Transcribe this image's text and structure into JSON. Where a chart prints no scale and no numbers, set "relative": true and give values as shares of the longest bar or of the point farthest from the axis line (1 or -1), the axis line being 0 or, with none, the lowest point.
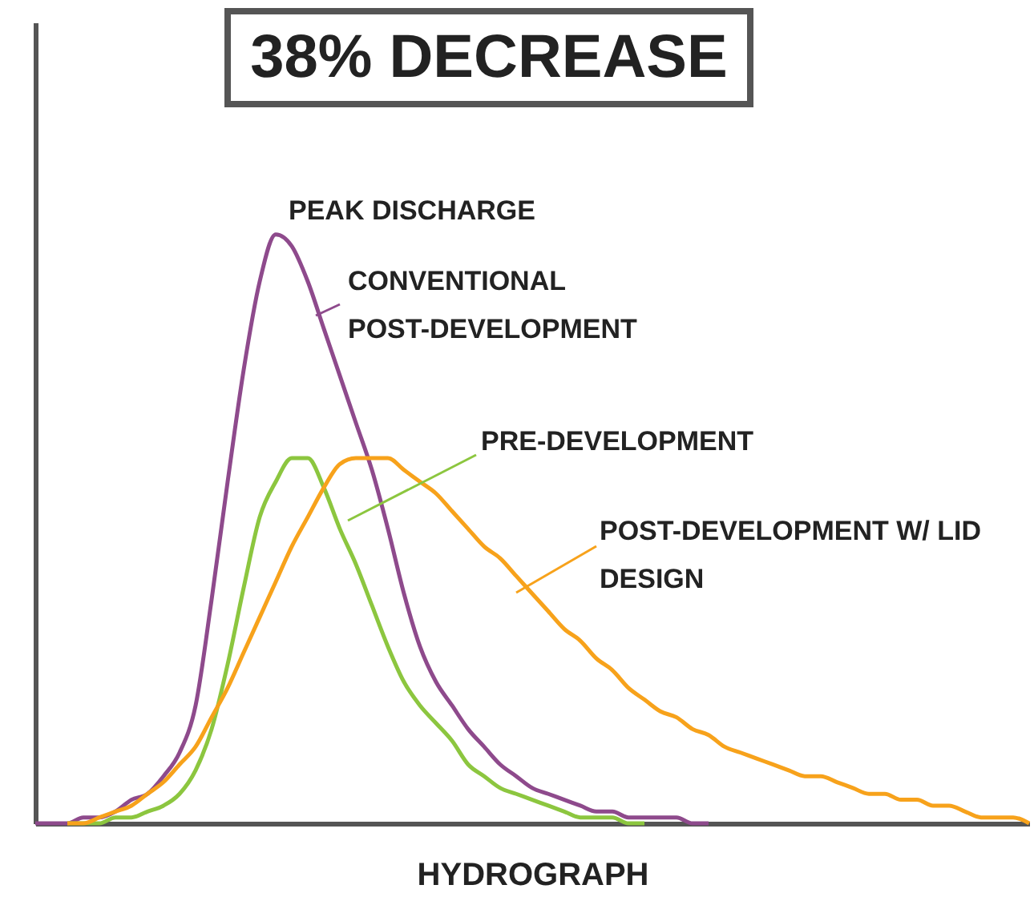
{
  "chart_data": {
    "type": "line",
    "title": "38% DECREASE",
    "xlabel": "HYDROGRAPH",
    "annotations": [
      "PEAK DISCHARGE"
    ],
    "relative": true,
    "legend": "top right",
    "categories": [
      null,
      null,
      null,
      null,
      null,
      null,
      null,
      null,
      null,
      null,
      null,
      null,
      null,
      null,
      null,
      null,
      null,
      null,
      null,
      null,
      null,
      null,
      null,
      null,
      null,
      null,
      null,
      null,
      null,
      null,
      null,
      null,
      null,
      null,
      null,
      null,
      null,
      null,
      null,
      null,
      null,
      null,
      null,
      null,
      null,
      null,
      null,
      null,
      null,
      null,
      null,
      null,
      null,
      null,
      null,
      null,
      null,
      null,
      null,
      null,
      null,
      null,
      null
    ],
    "series": [
      {
        "name": "CONVENTIONAL POST-DEVELOPMENT",
        "color": "#8e4a8c",
        "values": [
          0,
          0,
          0,
          0.01,
          0.01,
          0.02,
          0.04,
          0.05,
          0.08,
          0.12,
          0.2,
          0.38,
          0.58,
          0.77,
          0.92,
          1,
          0.98,
          0.92,
          0.84,
          0.76,
          0.68,
          0.6,
          0.5,
          0.39,
          0.3,
          0.24,
          0.2,
          0.16,
          0.13,
          0.1,
          0.08,
          0.06,
          0.05,
          0.04,
          0.03,
          0.02,
          0.02,
          0.01,
          0.01,
          0.01,
          0.01,
          0,
          0,
          null,
          null,
          null,
          null,
          null,
          null,
          null,
          null,
          null,
          null,
          null,
          null,
          null,
          null,
          null,
          null,
          null,
          null,
          null,
          null
        ]
      },
      {
        "name": "PRE-DEVELOPMENT",
        "color": "#8cc63f",
        "values": [
          null,
          null,
          0,
          0,
          0,
          0.01,
          0.01,
          0.02,
          0.03,
          0.05,
          0.09,
          0.16,
          0.27,
          0.4,
          0.52,
          0.58,
          0.62,
          0.62,
          0.57,
          0.5,
          0.44,
          0.37,
          0.3,
          0.24,
          0.2,
          0.17,
          0.14,
          0.1,
          0.08,
          0.06,
          0.05,
          0.04,
          0.03,
          0.02,
          0.01,
          0.01,
          0.01,
          0,
          0,
          null,
          null,
          null,
          null,
          null,
          null,
          null,
          null,
          null,
          null,
          null,
          null,
          null,
          null,
          null,
          null,
          null,
          null,
          null,
          null,
          null,
          null,
          null,
          null
        ]
      },
      {
        "name": "POST-DEVELOPMENT W/ LID DESIGN",
        "color": "#f7a21b",
        "values": [
          null,
          null,
          0,
          0,
          0.01,
          0.02,
          0.03,
          0.05,
          0.07,
          0.1,
          0.13,
          0.18,
          0.23,
          0.29,
          0.35,
          0.41,
          0.47,
          0.52,
          0.57,
          0.61,
          0.62,
          0.62,
          0.62,
          0.6,
          0.58,
          0.56,
          0.53,
          0.5,
          0.47,
          0.45,
          0.42,
          0.39,
          0.36,
          0.33,
          0.31,
          0.28,
          0.26,
          0.23,
          0.21,
          0.19,
          0.18,
          0.16,
          0.15,
          0.13,
          0.12,
          0.11,
          0.1,
          0.09,
          0.08,
          0.08,
          0.07,
          0.06,
          0.05,
          0.05,
          0.04,
          0.04,
          0.03,
          0.03,
          0.02,
          0.01,
          0.01,
          0.01,
          0
        ]
      }
    ]
  }
}
